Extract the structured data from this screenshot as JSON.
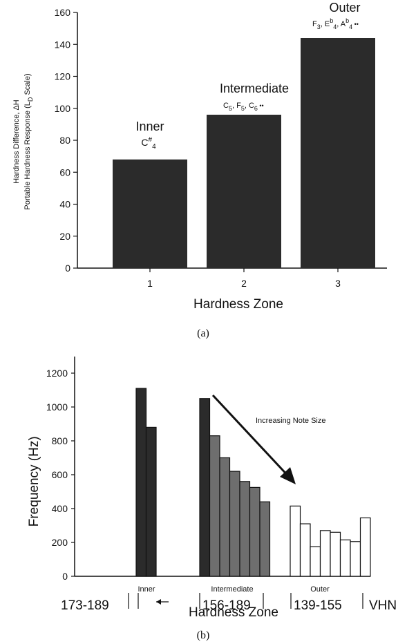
{
  "chart_data": [
    {
      "type": "bar",
      "ylabel_line1": "Hardness Difference, ΔH",
      "ylabel_line2": "Portable Hardness Response (L",
      "ylabel_sub": "D",
      "ylabel_end": " Scale)",
      "xlabel": "Hardness Zone",
      "caption": "(a)",
      "categories": [
        "1",
        "2",
        "3"
      ],
      "values": [
        68,
        96,
        144
      ],
      "ylim": [
        0,
        160
      ],
      "yticks": [
        0,
        20,
        40,
        60,
        80,
        100,
        120,
        140,
        160
      ],
      "bar_color": "#2b2b2b",
      "annotations": [
        {
          "zone": "Inner",
          "notes": "C#4"
        },
        {
          "zone": "Intermediate",
          "notes": "C5, F5, C6 .."
        },
        {
          "zone": "Outer",
          "notes": "F3, Eb4, Ab4 .."
        }
      ]
    },
    {
      "type": "bar",
      "ylabel": "Frequency (Hz)",
      "xlabel": "Hardness Zone",
      "caption": "(b)",
      "ylim": [
        0,
        1200
      ],
      "yticks": [
        0,
        200,
        400,
        600,
        800,
        1000,
        1200
      ],
      "arrow_label": "Increasing Note Size",
      "vhn_unit": "VHN",
      "groups": [
        {
          "name": "Inner",
          "range": "173-189",
          "fill": "#2b2b2b",
          "values": [
            1110,
            880
          ]
        },
        {
          "name": "Intermediate",
          "range": "156-189",
          "fill_first": "#2b2b2b",
          "fill": "#6e6e6e",
          "values": [
            1050,
            830,
            700,
            620,
            560,
            525,
            440
          ]
        },
        {
          "name": "Outer",
          "range": "139-155",
          "fill": "#ffffff",
          "values": [
            415,
            310,
            175,
            270,
            260,
            215,
            205,
            345
          ]
        }
      ]
    }
  ]
}
